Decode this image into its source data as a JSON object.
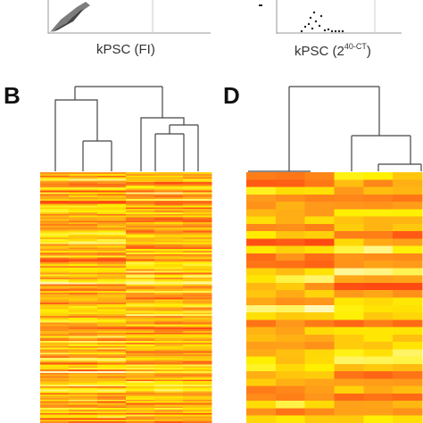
{
  "panels": {
    "b_letter": "B",
    "d_letter": "D",
    "left_axis": {
      "prefix": "kPSC (FI)"
    },
    "right_axis": {
      "prefix": "kPSC (2",
      "sup": "40-CT",
      "suffix": ")"
    }
  },
  "colors": {
    "high": "#FFF9D6",
    "yellow": "#FFF000",
    "orange": "#FF9A1A",
    "red": "#FF4A12",
    "dendrogram": "#444444"
  },
  "heatmap_b": {
    "columns": 6,
    "rows": 150
  },
  "heatmap_d": {
    "columns": 6,
    "rows": 34
  }
}
